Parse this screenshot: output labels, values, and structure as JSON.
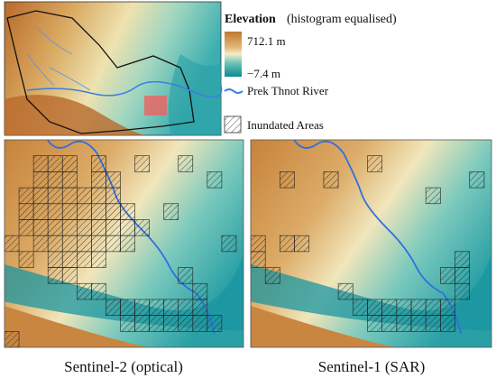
{
  "legend": {
    "title": "Elevation",
    "subtitle": "(histogram equalised)",
    "max_label": "712.1 m",
    "min_label": "−7.4 m",
    "river": "Prek Thnot River",
    "inundated": "Inundated Areas"
  },
  "panels": [
    {
      "caption": "Sentinel-2 (optical)"
    },
    {
      "caption": "Sentinel-1 (SAR)"
    }
  ]
}
